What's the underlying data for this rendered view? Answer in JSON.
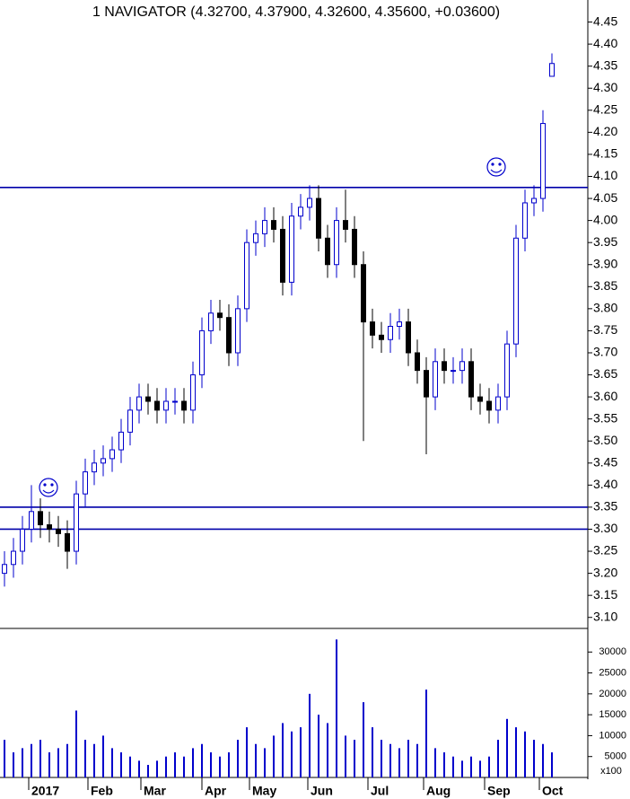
{
  "chart_data": [
    {
      "type": "candlestick",
      "title": "1 NAVIGATOR (4.32700, 4.37900, 4.32600, 4.35600, +0.03600)",
      "x": [
        0,
        1,
        2,
        3,
        4,
        5,
        6,
        7,
        8,
        9,
        10,
        11,
        12,
        13,
        14,
        15,
        16,
        17,
        18,
        19,
        20,
        21,
        22,
        23,
        24,
        25,
        26,
        27,
        28,
        29,
        30,
        31,
        32,
        33,
        34,
        35,
        36,
        37,
        38,
        39,
        40,
        41,
        42,
        43,
        44,
        45,
        46,
        47,
        48,
        49,
        50,
        51,
        52,
        53,
        54,
        55,
        56,
        57,
        58,
        59,
        60,
        61
      ],
      "open": [
        3.2,
        3.22,
        3.25,
        3.3,
        3.34,
        3.31,
        3.3,
        3.29,
        3.25,
        3.38,
        3.43,
        3.45,
        3.46,
        3.48,
        3.52,
        3.57,
        3.6,
        3.59,
        3.57,
        3.59,
        3.59,
        3.57,
        3.65,
        3.75,
        3.79,
        3.78,
        3.7,
        3.8,
        3.95,
        3.97,
        4.0,
        3.98,
        3.86,
        4.01,
        4.03,
        4.05,
        3.96,
        3.9,
        4.0,
        3.98,
        3.9,
        3.77,
        3.74,
        3.73,
        3.76,
        3.77,
        3.7,
        3.66,
        3.6,
        3.68,
        3.66,
        3.66,
        3.68,
        3.6,
        3.59,
        3.57,
        3.6,
        3.72,
        3.96,
        4.04,
        4.05,
        4.327
      ],
      "high": [
        3.25,
        3.28,
        3.33,
        3.4,
        3.37,
        3.34,
        3.33,
        3.32,
        3.41,
        3.46,
        3.48,
        3.49,
        3.51,
        3.55,
        3.6,
        3.63,
        3.63,
        3.62,
        3.62,
        3.62,
        3.62,
        3.68,
        3.78,
        3.82,
        3.82,
        3.81,
        3.83,
        3.98,
        4.0,
        4.03,
        4.03,
        4.01,
        4.04,
        4.06,
        4.08,
        4.08,
        3.99,
        4.03,
        4.07,
        4.01,
        3.93,
        3.8,
        3.77,
        3.79,
        3.8,
        3.8,
        3.73,
        3.69,
        3.71,
        3.71,
        3.69,
        3.71,
        3.71,
        3.63,
        3.62,
        3.63,
        3.75,
        3.99,
        4.07,
        4.08,
        4.25,
        4.379
      ],
      "low": [
        3.17,
        3.19,
        3.22,
        3.27,
        3.28,
        3.27,
        3.26,
        3.21,
        3.22,
        3.35,
        3.4,
        3.42,
        3.43,
        3.45,
        3.49,
        3.54,
        3.56,
        3.54,
        3.54,
        3.56,
        3.54,
        3.54,
        3.62,
        3.72,
        3.75,
        3.67,
        3.67,
        3.77,
        3.92,
        3.94,
        3.95,
        3.83,
        3.83,
        3.98,
        4.0,
        3.93,
        3.87,
        3.87,
        3.95,
        3.87,
        3.5,
        3.71,
        3.7,
        3.7,
        3.73,
        3.67,
        3.63,
        3.47,
        3.57,
        3.63,
        3.63,
        3.63,
        3.57,
        3.56,
        3.54,
        3.54,
        3.57,
        3.69,
        3.93,
        4.01,
        4.02,
        4.326
      ],
      "close": [
        3.22,
        3.25,
        3.3,
        3.34,
        3.31,
        3.3,
        3.29,
        3.25,
        3.38,
        3.43,
        3.45,
        3.46,
        3.48,
        3.52,
        3.57,
        3.6,
        3.59,
        3.57,
        3.59,
        3.59,
        3.57,
        3.65,
        3.75,
        3.79,
        3.78,
        3.7,
        3.8,
        3.95,
        3.97,
        4.0,
        3.98,
        3.86,
        4.01,
        4.03,
        4.05,
        3.96,
        3.9,
        4.0,
        3.98,
        3.9,
        3.77,
        3.74,
        3.73,
        3.76,
        3.77,
        3.7,
        3.66,
        3.6,
        3.68,
        3.66,
        3.66,
        3.68,
        3.6,
        3.59,
        3.57,
        3.6,
        3.72,
        3.96,
        4.04,
        4.05,
        4.22,
        4.356
      ],
      "color": "#0000cc",
      "down_color": "#000000",
      "levels": [
        4.075,
        3.35,
        3.3
      ],
      "level_color": "#0000aa",
      "xlim": [
        -0.5,
        65
      ],
      "ylim": [
        3.075,
        4.5
      ],
      "yticks": [
        {
          "value": 3.1,
          "label": "3.10"
        },
        {
          "value": 3.15,
          "label": "3.15"
        },
        {
          "value": 3.2,
          "label": "3.20"
        },
        {
          "value": 3.25,
          "label": "3.25"
        },
        {
          "value": 3.3,
          "label": "3.30"
        },
        {
          "value": 3.35,
          "label": "3.35"
        },
        {
          "value": 3.4,
          "label": "3.40"
        },
        {
          "value": 3.45,
          "label": "3.45"
        },
        {
          "value": 3.5,
          "label": "3.50"
        },
        {
          "value": 3.55,
          "label": "3.55"
        },
        {
          "value": 3.6,
          "label": "3.60"
        },
        {
          "value": 3.65,
          "label": "3.65"
        },
        {
          "value": 3.7,
          "label": "3.70"
        },
        {
          "value": 3.75,
          "label": "3.75"
        },
        {
          "value": 3.8,
          "label": "3.80"
        },
        {
          "value": 3.85,
          "label": "3.85"
        },
        {
          "value": 3.9,
          "label": "3.90"
        },
        {
          "value": 3.95,
          "label": "3.95"
        },
        {
          "value": 4.0,
          "label": "4.00"
        },
        {
          "value": 4.05,
          "label": "4.05"
        },
        {
          "value": 4.1,
          "label": "4.10"
        },
        {
          "value": 4.15,
          "label": "4.15"
        },
        {
          "value": 4.2,
          "label": "4.20"
        },
        {
          "value": 4.25,
          "label": "4.25"
        },
        {
          "value": 4.3,
          "label": "4.30"
        },
        {
          "value": 4.35,
          "label": "4.35"
        },
        {
          "value": 4.4,
          "label": "4.40"
        },
        {
          "value": 4.45,
          "label": "4.45"
        }
      ]
    },
    {
      "type": "bar",
      "unit_label": "x100",
      "values": [
        9000,
        6000,
        7000,
        8000,
        9000,
        6000,
        7000,
        8000,
        16000,
        9000,
        8000,
        10000,
        7000,
        6000,
        5000,
        4000,
        3000,
        4000,
        5000,
        6000,
        5000,
        7000,
        8000,
        6000,
        5000,
        6000,
        9000,
        12000,
        8000,
        7000,
        10000,
        13000,
        11000,
        12000,
        20000,
        15000,
        13000,
        33000,
        10000,
        9000,
        18000,
        12000,
        9000,
        8000,
        7000,
        9000,
        8000,
        21000,
        7000,
        6000,
        5000,
        4000,
        5000,
        4000,
        5000,
        9000,
        14000,
        12000,
        11000,
        9000,
        8000,
        6000
      ],
      "color": "#0000cc",
      "xlim": [
        -0.5,
        65
      ],
      "ylim": [
        0,
        35000
      ],
      "yticks": [
        5000,
        10000,
        15000,
        20000,
        25000,
        30000
      ],
      "xticks": [
        {
          "value": 2.7,
          "label": "2017"
        },
        {
          "value": 9.3,
          "label": "Feb"
        },
        {
          "value": 15.2,
          "label": "Mar"
        },
        {
          "value": 22,
          "label": "Apr"
        },
        {
          "value": 27.3,
          "label": "May"
        },
        {
          "value": 33.8,
          "label": "Jun"
        },
        {
          "value": 40.5,
          "label": "Jul"
        },
        {
          "value": 46.7,
          "label": "Aug"
        },
        {
          "value": 53.5,
          "label": "Sep"
        },
        {
          "value": 59.6,
          "label": "Oct"
        }
      ]
    }
  ]
}
